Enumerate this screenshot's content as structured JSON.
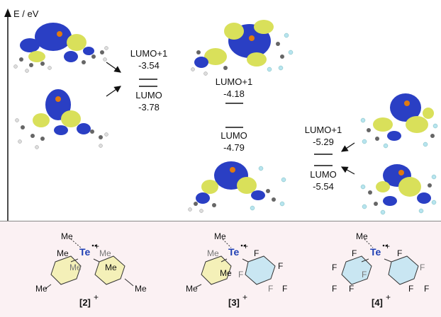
{
  "axis": {
    "label": "E / eV"
  },
  "compounds": [
    {
      "id": "2",
      "label": "[2]",
      "charge": "+",
      "levels": [
        {
          "name": "LUMO+1",
          "energy": "-3.54"
        },
        {
          "name": "LUMO",
          "energy": "-3.78"
        }
      ],
      "structure": {
        "methyl": "Me",
        "center": "Te",
        "center_charge": "+"
      }
    },
    {
      "id": "3",
      "label": "[3]",
      "charge": "+",
      "levels": [
        {
          "name": "LUMO+1",
          "energy": "-4.18"
        },
        {
          "name": "LUMO",
          "energy": "-4.79"
        }
      ],
      "structure": {
        "methyl": "Me",
        "center": "Te",
        "center_charge": "+"
      }
    },
    {
      "id": "4",
      "label": "[4]",
      "charge": "+",
      "levels": [
        {
          "name": "LUMO+1",
          "energy": "-5.29"
        },
        {
          "name": "LUMO",
          "energy": "-5.54"
        }
      ],
      "structure": {
        "methyl": "Me",
        "center": "Te",
        "center_charge": "+"
      }
    }
  ],
  "substituents": {
    "me": "Me",
    "f": "F"
  },
  "colors": {
    "orbital_positive": "#2a3fc4",
    "orbital_negative": "#d9e05a",
    "tellurium": "#1f3fb4",
    "mes_ring": "#f4f0b8",
    "fluoro_ring": "#c9e6f2",
    "panel_bg": "#fbf1f3"
  }
}
